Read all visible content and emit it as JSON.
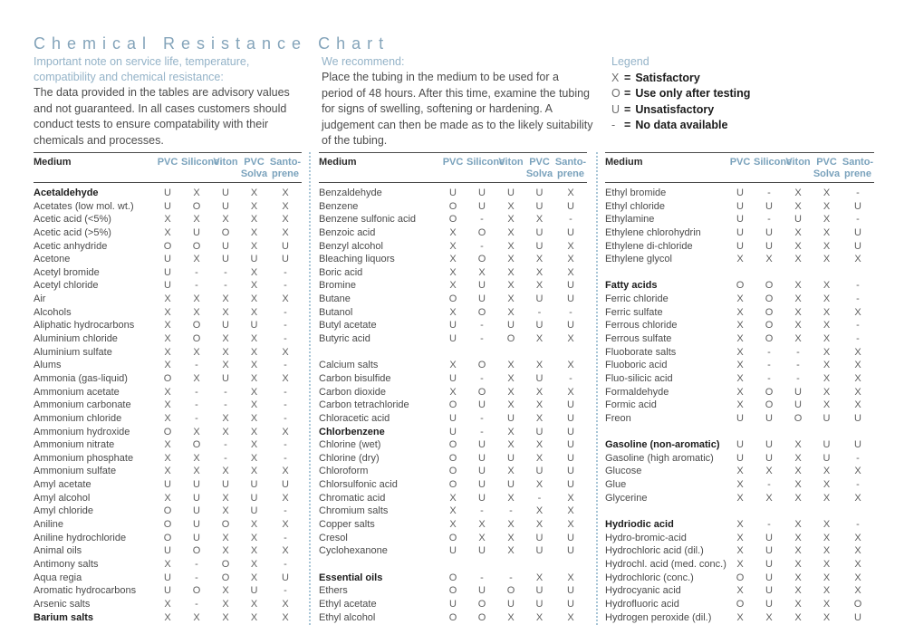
{
  "page": {
    "title": "Chemical Resistance Chart"
  },
  "intro": {
    "note_heading": "Important note on service life, temperature, compatibility and chemical resistance:",
    "note_body": "The data provided in the tables are advisory values and not guaranteed. In all cases customers should conduct tests to ensure compatability with their chemicals and processes.",
    "recommend_heading": "We recommend:",
    "recommend_body": "Place the tubing in the medium to be used for a period of 48 hours. After this time, examine the tubing for signs of swelling, softening or hardening. A judgement can then be made as to the likely suitability of the tubing."
  },
  "legend": {
    "title": "Legend",
    "items": [
      {
        "symbol": "X",
        "eq": "=",
        "label": "Satisfactory"
      },
      {
        "symbol": "O",
        "eq": "=",
        "label": "Use only after testing"
      },
      {
        "symbol": "U",
        "eq": "=",
        "label": "Unsatisfactory"
      },
      {
        "symbol": "-",
        "eq": "=",
        "label": "No data available"
      }
    ]
  },
  "header": {
    "medium": "Medium",
    "cols": [
      "PVC",
      "Silicone",
      "Viton",
      "PVC\nSolva",
      "Santo-\nprene"
    ]
  },
  "tables": [
    {
      "rows": [
        {
          "medium": "Acetaldehyde",
          "bold": true,
          "values": [
            "U",
            "X",
            "U",
            "X",
            "X"
          ]
        },
        {
          "medium": "Acetates (low mol. wt.)",
          "values": [
            "U",
            "O",
            "U",
            "X",
            "X"
          ]
        },
        {
          "medium": "Acetic acid (<5%)",
          "values": [
            "X",
            "X",
            "X",
            "X",
            "X"
          ]
        },
        {
          "medium": "Acetic acid (>5%)",
          "values": [
            "X",
            "U",
            "O",
            "X",
            "X"
          ]
        },
        {
          "medium": "Acetic anhydride",
          "values": [
            "O",
            "O",
            "U",
            "X",
            "U"
          ]
        },
        {
          "medium": "Acetone",
          "values": [
            "U",
            "X",
            "U",
            "U",
            "U"
          ]
        },
        {
          "medium": "Acetyl bromide",
          "values": [
            "U",
            "-",
            "-",
            "X",
            "-"
          ]
        },
        {
          "medium": "Acetyl chloride",
          "values": [
            "U",
            "-",
            "-",
            "X",
            "-"
          ]
        },
        {
          "medium": "Air",
          "values": [
            "X",
            "X",
            "X",
            "X",
            "X"
          ]
        },
        {
          "medium": "Alcohols",
          "values": [
            "X",
            "X",
            "X",
            "X",
            "-"
          ]
        },
        {
          "medium": "Aliphatic hydrocarbons",
          "values": [
            "X",
            "O",
            "U",
            "U",
            "-"
          ]
        },
        {
          "medium": "Aluminium chloride",
          "values": [
            "X",
            "O",
            "X",
            "X",
            "-"
          ]
        },
        {
          "medium": "Aluminium sulfate",
          "values": [
            "X",
            "X",
            "X",
            "X",
            "X"
          ]
        },
        {
          "medium": "Alums",
          "values": [
            "X",
            "-",
            "X",
            "X",
            "-"
          ]
        },
        {
          "medium": "Ammonia (gas-liquid)",
          "values": [
            "O",
            "X",
            "U",
            "X",
            "X"
          ]
        },
        {
          "medium": "Ammonium acetate",
          "values": [
            "X",
            "-",
            "-",
            "X",
            "-"
          ]
        },
        {
          "medium": "Ammonium carbonate",
          "values": [
            "X",
            "-",
            "-",
            "X",
            "-"
          ]
        },
        {
          "medium": "Ammonium chloride",
          "values": [
            "X",
            "-",
            "X",
            "X",
            "-"
          ]
        },
        {
          "medium": "Ammonium hydroxide",
          "values": [
            "O",
            "X",
            "X",
            "X",
            "X"
          ]
        },
        {
          "medium": "Ammonium nitrate",
          "values": [
            "X",
            "O",
            "-",
            "X",
            "-"
          ]
        },
        {
          "medium": "Ammonium phosphate",
          "values": [
            "X",
            "X",
            "-",
            "X",
            "-"
          ]
        },
        {
          "medium": "Ammonium sulfate",
          "values": [
            "X",
            "X",
            "X",
            "X",
            "X"
          ]
        },
        {
          "medium": "Amyl acetate",
          "values": [
            "U",
            "U",
            "U",
            "U",
            "U"
          ]
        },
        {
          "medium": "Amyl alcohol",
          "values": [
            "X",
            "U",
            "X",
            "U",
            "X"
          ]
        },
        {
          "medium": "Amyl chloride",
          "values": [
            "O",
            "U",
            "X",
            "U",
            "-"
          ]
        },
        {
          "medium": "Aniline",
          "values": [
            "O",
            "U",
            "O",
            "X",
            "X"
          ]
        },
        {
          "medium": "Aniline hydrochloride",
          "values": [
            "O",
            "U",
            "X",
            "X",
            "-"
          ]
        },
        {
          "medium": "Animal oils",
          "values": [
            "U",
            "O",
            "X",
            "X",
            "X"
          ]
        },
        {
          "medium": "Antimony salts",
          "values": [
            "X",
            "-",
            "O",
            "X",
            "-"
          ]
        },
        {
          "medium": "Aqua regia",
          "values": [
            "U",
            "-",
            "O",
            "X",
            "U"
          ]
        },
        {
          "medium": "Aromatic hydrocarbons",
          "values": [
            "U",
            "O",
            "X",
            "U",
            "-"
          ]
        },
        {
          "medium": "Arsenic salts",
          "values": [
            "X",
            "-",
            "X",
            "X",
            "X"
          ]
        },
        {
          "medium": "Barium salts",
          "bold": true,
          "values": [
            "X",
            "X",
            "X",
            "X",
            "X"
          ]
        }
      ]
    },
    {
      "rows": [
        {
          "medium": "Benzaldehyde",
          "values": [
            "U",
            "U",
            "U",
            "U",
            "X"
          ]
        },
        {
          "medium": "Benzene",
          "values": [
            "O",
            "U",
            "X",
            "U",
            "U"
          ]
        },
        {
          "medium": "Benzene sulfonic acid",
          "values": [
            "O",
            "-",
            "X",
            "X",
            "-"
          ]
        },
        {
          "medium": "Benzoic acid",
          "values": [
            "X",
            "O",
            "X",
            "U",
            "U"
          ]
        },
        {
          "medium": "Benzyl alcohol",
          "values": [
            "X",
            "-",
            "X",
            "U",
            "X"
          ]
        },
        {
          "medium": "Bleaching liquors",
          "values": [
            "X",
            "O",
            "X",
            "X",
            "X"
          ]
        },
        {
          "medium": "Boric acid",
          "values": [
            "X",
            "X",
            "X",
            "X",
            "X"
          ]
        },
        {
          "medium": "Bromine",
          "values": [
            "X",
            "U",
            "X",
            "X",
            "U"
          ]
        },
        {
          "medium": "Butane",
          "values": [
            "O",
            "U",
            "X",
            "U",
            "U"
          ]
        },
        {
          "medium": "Butanol",
          "values": [
            "X",
            "O",
            "X",
            "-",
            "-"
          ]
        },
        {
          "medium": "Butyl acetate",
          "values": [
            "U",
            "-",
            "U",
            "U",
            "U"
          ]
        },
        {
          "medium": "Butyric acid",
          "values": [
            "U",
            "-",
            "O",
            "X",
            "X"
          ]
        },
        {
          "spacer": true
        },
        {
          "medium": "Calcium salts",
          "values": [
            "X",
            "O",
            "X",
            "X",
            "X"
          ]
        },
        {
          "medium": "Carbon bisulfide",
          "values": [
            "U",
            "-",
            "X",
            "U",
            "-"
          ]
        },
        {
          "medium": "Carbon dioxide",
          "values": [
            "X",
            "O",
            "X",
            "X",
            "X"
          ]
        },
        {
          "medium": "Carbon tetrachloride",
          "values": [
            "O",
            "U",
            "X",
            "X",
            "U"
          ]
        },
        {
          "medium": "Chloracetic acid",
          "values": [
            "U",
            "-",
            "U",
            "X",
            "U"
          ]
        },
        {
          "medium": "Chlorbenzene",
          "bold": true,
          "values": [
            "U",
            "-",
            "X",
            "U",
            "U"
          ]
        },
        {
          "medium": "Chlorine (wet)",
          "values": [
            "O",
            "U",
            "X",
            "X",
            "U"
          ]
        },
        {
          "medium": "Chlorine (dry)",
          "values": [
            "O",
            "U",
            "U",
            "X",
            "U"
          ]
        },
        {
          "medium": "Chloroform",
          "values": [
            "O",
            "U",
            "X",
            "U",
            "U"
          ]
        },
        {
          "medium": "Chlorsulfonic acid",
          "values": [
            "O",
            "U",
            "U",
            "X",
            "U"
          ]
        },
        {
          "medium": "Chromatic acid",
          "values": [
            "X",
            "U",
            "X",
            "-",
            "X"
          ]
        },
        {
          "medium": "Chromium salts",
          "values": [
            "X",
            "-",
            "-",
            "X",
            "X"
          ]
        },
        {
          "medium": "Copper salts",
          "values": [
            "X",
            "X",
            "X",
            "X",
            "X"
          ]
        },
        {
          "medium": "Cresol",
          "values": [
            "O",
            "X",
            "X",
            "U",
            "U"
          ]
        },
        {
          "medium": "Cyclohexanone",
          "values": [
            "U",
            "U",
            "X",
            "U",
            "U"
          ]
        },
        {
          "spacer": true
        },
        {
          "medium": "Essential oils",
          "bold": true,
          "values": [
            "O",
            "-",
            "-",
            "X",
            "X"
          ]
        },
        {
          "medium": "Ethers",
          "values": [
            "O",
            "U",
            "O",
            "U",
            "U"
          ]
        },
        {
          "medium": "Ethyl acetate",
          "values": [
            "U",
            "O",
            "U",
            "U",
            "U"
          ]
        },
        {
          "medium": "Ethyl alcohol",
          "values": [
            "O",
            "O",
            "X",
            "X",
            "X"
          ]
        }
      ]
    },
    {
      "rows": [
        {
          "medium": "Ethyl bromide",
          "values": [
            "U",
            "-",
            "X",
            "X",
            "-"
          ]
        },
        {
          "medium": "Ethyl chloride",
          "values": [
            "U",
            "U",
            "X",
            "X",
            "U"
          ]
        },
        {
          "medium": "Ethylamine",
          "values": [
            "U",
            "-",
            "U",
            "X",
            "-"
          ]
        },
        {
          "medium": "Ethylene chlorohydrin",
          "values": [
            "U",
            "U",
            "X",
            "X",
            "U"
          ]
        },
        {
          "medium": "Ethylene di-chloride",
          "values": [
            "U",
            "U",
            "X",
            "X",
            "U"
          ]
        },
        {
          "medium": "Ethylene glycol",
          "values": [
            "X",
            "X",
            "X",
            "X",
            "X"
          ]
        },
        {
          "spacer": true
        },
        {
          "medium": "Fatty acids",
          "bold": true,
          "values": [
            "O",
            "O",
            "X",
            "X",
            "-"
          ]
        },
        {
          "medium": "Ferric chloride",
          "values": [
            "X",
            "O",
            "X",
            "X",
            "-"
          ]
        },
        {
          "medium": "Ferric sulfate",
          "values": [
            "X",
            "O",
            "X",
            "X",
            "X"
          ]
        },
        {
          "medium": "Ferrous chloride",
          "values": [
            "X",
            "O",
            "X",
            "X",
            "-"
          ]
        },
        {
          "medium": "Ferrous sulfate",
          "values": [
            "X",
            "O",
            "X",
            "X",
            "-"
          ]
        },
        {
          "medium": "Fluoborate salts",
          "values": [
            "X",
            "-",
            "-",
            "X",
            "X"
          ]
        },
        {
          "medium": "Fluoboric acid",
          "values": [
            "X",
            "-",
            "-",
            "X",
            "X"
          ]
        },
        {
          "medium": "Fluo-silicic acid",
          "values": [
            "X",
            "-",
            "-",
            "X",
            "X"
          ]
        },
        {
          "medium": "Formaldehyde",
          "values": [
            "X",
            "O",
            "U",
            "X",
            "X"
          ]
        },
        {
          "medium": "Formic acid",
          "values": [
            "X",
            "O",
            "U",
            "X",
            "X"
          ]
        },
        {
          "medium": "Freon",
          "values": [
            "U",
            "U",
            "O",
            "U",
            "U"
          ]
        },
        {
          "spacer": true
        },
        {
          "medium": "Gasoline (non-aromatic)",
          "bold": true,
          "values": [
            "U",
            "U",
            "X",
            "U",
            "U"
          ]
        },
        {
          "medium": "Gasoline (high aromatic)",
          "values": [
            "U",
            "U",
            "X",
            "U",
            "-"
          ]
        },
        {
          "medium": "Glucose",
          "values": [
            "X",
            "X",
            "X",
            "X",
            "X"
          ]
        },
        {
          "medium": "Glue",
          "values": [
            "X",
            "-",
            "X",
            "X",
            "-"
          ]
        },
        {
          "medium": "Glycerine",
          "values": [
            "X",
            "X",
            "X",
            "X",
            "X"
          ]
        },
        {
          "spacer": true
        },
        {
          "medium": "Hydriodic acid",
          "bold": true,
          "values": [
            "X",
            "-",
            "X",
            "X",
            "-"
          ]
        },
        {
          "medium": "Hydro-bromic-acid",
          "values": [
            "X",
            "U",
            "X",
            "X",
            "X"
          ]
        },
        {
          "medium": "Hydrochloric acid (dil.)",
          "values": [
            "X",
            "U",
            "X",
            "X",
            "X"
          ]
        },
        {
          "medium": "Hydrochl. acid (med. conc.)",
          "values": [
            "X",
            "U",
            "X",
            "X",
            "X"
          ]
        },
        {
          "medium": "Hydrochloric (conc.)",
          "values": [
            "O",
            "U",
            "X",
            "X",
            "X"
          ]
        },
        {
          "medium": "Hydrocyanic acid",
          "values": [
            "X",
            "U",
            "X",
            "X",
            "X"
          ]
        },
        {
          "medium": "Hydrofluoric acid",
          "values": [
            "O",
            "U",
            "X",
            "X",
            "O"
          ]
        },
        {
          "medium": "Hydrogen peroxide (dil.)",
          "values": [
            "X",
            "X",
            "X",
            "X",
            "U"
          ]
        }
      ]
    }
  ]
}
